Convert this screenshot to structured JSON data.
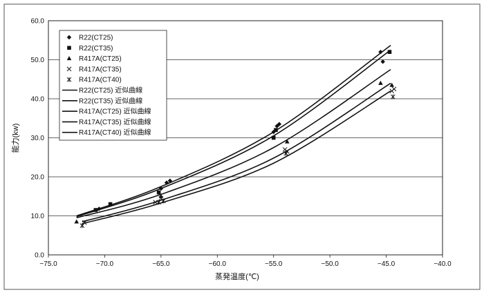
{
  "chart_data": {
    "type": "scatter",
    "xlabel": "蒸発温度(℃)",
    "ylabel": "能力(kw)",
    "xlim": [
      -75.0,
      -40.0
    ],
    "ylim": [
      0.0,
      60.0
    ],
    "x_ticks": [
      "−75.0",
      "−70.0",
      "−65.0",
      "−60.0",
      "−55.0",
      "−50.0",
      "−45.0",
      "−40.0"
    ],
    "y_ticks": [
      "0.0",
      "10.0",
      "20.0",
      "30.0",
      "40.0",
      "50.0",
      "60.0"
    ],
    "grid": "horizontal",
    "legend_position": "top-left",
    "series": [
      {
        "name": "R22(CT25)",
        "marker": "diamond",
        "points": [
          [
            -70.5,
            11.8
          ],
          [
            -65.0,
            17.0
          ],
          [
            -64.5,
            18.5
          ],
          [
            -64.2,
            19.0
          ],
          [
            -55.0,
            31.5
          ],
          [
            -54.7,
            33.0
          ],
          [
            -54.5,
            33.5
          ],
          [
            -45.5,
            52.0
          ],
          [
            -45.3,
            49.5
          ]
        ]
      },
      {
        "name": "R22(CT35)",
        "marker": "square",
        "points": [
          [
            -70.8,
            11.5
          ],
          [
            -69.5,
            13.0
          ],
          [
            -65.2,
            16.0
          ],
          [
            -55.0,
            30.0
          ],
          [
            -54.8,
            32.0
          ],
          [
            -44.7,
            52.0
          ]
        ]
      },
      {
        "name": "R417A(CT25)",
        "marker": "triangle",
        "points": [
          [
            -72.5,
            8.5
          ],
          [
            -65.0,
            15.0
          ],
          [
            -53.8,
            29.0
          ],
          [
            -45.5,
            44.0
          ],
          [
            -44.5,
            43.5
          ]
        ]
      },
      {
        "name": "R417A(CT35)",
        "marker": "x",
        "points": [
          [
            -71.8,
            8.3
          ],
          [
            -65.5,
            13.5
          ],
          [
            -65.0,
            14.5
          ],
          [
            -54.0,
            27.0
          ],
          [
            -53.8,
            26.5
          ],
          [
            -44.5,
            42.0
          ],
          [
            -44.3,
            42.5
          ]
        ]
      },
      {
        "name": "R417A(CT40)",
        "marker": "asterisk",
        "points": [
          [
            -72.0,
            7.5
          ],
          [
            -65.2,
            13.5
          ],
          [
            -64.8,
            13.8
          ],
          [
            -53.9,
            26.0
          ],
          [
            -44.4,
            40.5
          ]
        ]
      }
    ],
    "fit_curves": [
      {
        "name": "R22(CT25) 近似曲線",
        "points": [
          [
            -72.5,
            10.0
          ],
          [
            -65.0,
            17.5
          ],
          [
            -55.0,
            31.5
          ],
          [
            -44.6,
            53.7
          ]
        ]
      },
      {
        "name": "R22(CT35) 近似曲線",
        "points": [
          [
            -72.5,
            9.8
          ],
          [
            -65.0,
            17.0
          ],
          [
            -55.0,
            30.5
          ],
          [
            -44.6,
            52.5
          ]
        ]
      },
      {
        "name": "R417A(CT25) 近似曲線",
        "points": [
          [
            -72.5,
            9.5
          ],
          [
            -65.0,
            15.5
          ],
          [
            -55.0,
            27.5
          ],
          [
            -44.6,
            47.5
          ]
        ]
      },
      {
        "name": "R417A(CT35) 近似曲線",
        "points": [
          [
            -72.0,
            8.5
          ],
          [
            -65.0,
            14.0
          ],
          [
            -55.0,
            24.8
          ],
          [
            -44.6,
            44.0
          ]
        ]
      },
      {
        "name": "R417A(CT40) 近似曲線",
        "points": [
          [
            -72.0,
            8.0
          ],
          [
            -65.0,
            13.3
          ],
          [
            -55.0,
            23.5
          ],
          [
            -44.6,
            42.0
          ]
        ]
      }
    ]
  }
}
